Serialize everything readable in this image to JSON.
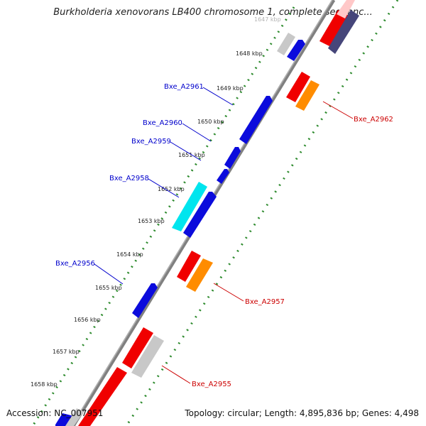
{
  "title": "Burkholderia xenovorans LB400 chromosome 1, complete sequenc...",
  "footer": {
    "accession": "Accession: NC_007951",
    "topology": "Topology: circular; Length: 4,895,836 bp; Genes: 4,498"
  },
  "colors": {
    "blue_gene": "#0b0bdc",
    "cyan_gene": "#00e5ee",
    "red_gene": "#f00000",
    "orange_gene": "#ff8c00",
    "gray_gene": "#c8c8c8",
    "navy_gene": "#46467a",
    "backbone": "#808080",
    "tick_outer": "#2e8b2e",
    "label_blue": "#0000cc",
    "label_red": "#cc0000"
  },
  "ticks": [
    {
      "label": "1647 kbp"
    },
    {
      "label": "1648 kbp"
    },
    {
      "label": "1649 kbp"
    },
    {
      "label": "1650 kbp"
    },
    {
      "label": "1651 kbp"
    },
    {
      "label": "1652 kbp"
    },
    {
      "label": "1653 kbp"
    },
    {
      "label": "1654 kbp"
    },
    {
      "label": "1655 kbp"
    },
    {
      "label": "1656 kbp"
    },
    {
      "label": "1657 kbp"
    },
    {
      "label": "1658 kbp"
    }
  ],
  "gene_labels": [
    {
      "name": "Bxe_A2961",
      "strand": "forward"
    },
    {
      "name": "Bxe_A2960",
      "strand": "forward"
    },
    {
      "name": "Bxe_A2959",
      "strand": "forward"
    },
    {
      "name": "Bxe_A2958",
      "strand": "forward"
    },
    {
      "name": "Bxe_A2956",
      "strand": "forward"
    },
    {
      "name": "Bxe_A2962",
      "strand": "reverse"
    },
    {
      "name": "Bxe_A2957",
      "strand": "reverse"
    },
    {
      "name": "Bxe_A2955",
      "strand": "reverse"
    }
  ]
}
